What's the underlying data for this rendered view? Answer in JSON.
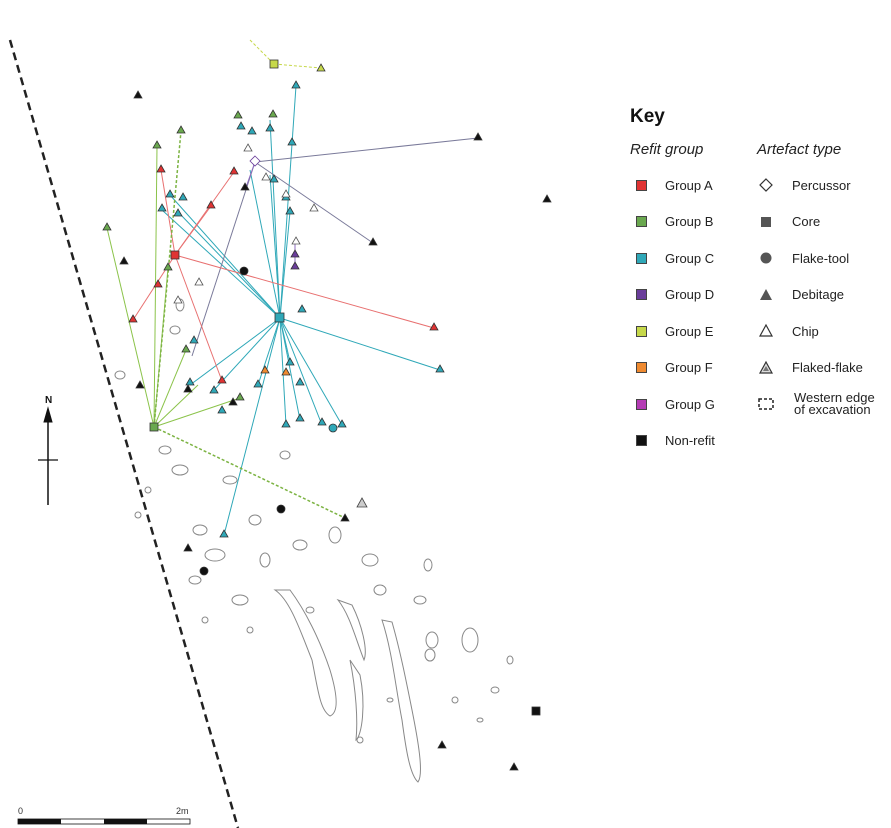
{
  "key": {
    "title": "Key",
    "refit_heading": "Refit group",
    "type_heading": "Artefact type",
    "groups": [
      {
        "label": "Group A",
        "color": "#e03333"
      },
      {
        "label": "Group B",
        "color": "#6aa84f"
      },
      {
        "label": "Group C",
        "color": "#2fa8b8"
      },
      {
        "label": "Group D",
        "color": "#6a3d9a"
      },
      {
        "label": "Group E",
        "color": "#c6d84a"
      },
      {
        "label": "Group F",
        "color": "#ef8a30"
      },
      {
        "label": "Group G",
        "color": "#b43cb4"
      },
      {
        "label": "Non-refit",
        "color": "#111111"
      }
    ],
    "types": [
      {
        "label": "Percussor",
        "icon": "diamond-outline"
      },
      {
        "label": "Core",
        "icon": "square-filled"
      },
      {
        "label": "Flake-tool",
        "icon": "circle-filled"
      },
      {
        "label": "Debitage",
        "icon": "triangle-filled"
      },
      {
        "label": "Chip",
        "icon": "triangle-outline"
      },
      {
        "label": "Flaked-flake",
        "icon": "triangle-hatched"
      },
      {
        "label": "Western edge\nof excavation",
        "icon": "dashed-box"
      }
    ]
  },
  "north_label": "N",
  "scale": {
    "start": "0",
    "end": "2m"
  },
  "colors": {
    "outline": "#888888",
    "edge": "#222222"
  }
}
